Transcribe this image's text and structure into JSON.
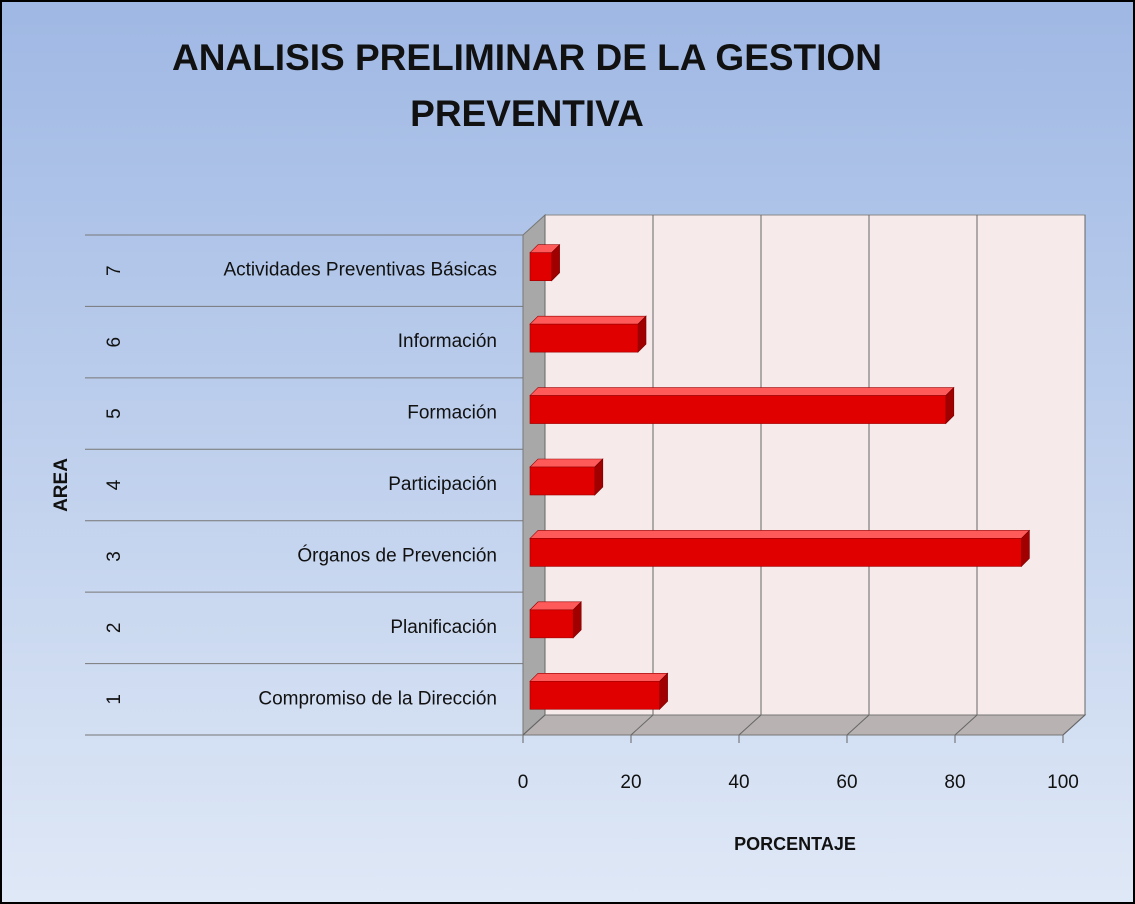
{
  "chart_data": {
    "type": "bar",
    "orientation": "horizontal",
    "title": "ANALISIS PRELIMINAR DE LA GESTION PREVENTIVA",
    "xlabel": "PORCENTAJE",
    "ylabel": "AREA",
    "category_ids": [
      1,
      2,
      3,
      4,
      5,
      6,
      7
    ],
    "categories": [
      "Compromiso de la Dirección",
      "Planificación",
      "Órganos de Prevención",
      "Participación",
      "Formación",
      "Información",
      "Actividades Preventivas Básicas"
    ],
    "values": [
      24,
      8,
      91,
      12,
      77,
      20,
      4
    ],
    "color": "#e00000",
    "xlim": [
      0,
      100
    ],
    "xticks": [
      0,
      20,
      40,
      60,
      80,
      100
    ],
    "grid": true
  }
}
